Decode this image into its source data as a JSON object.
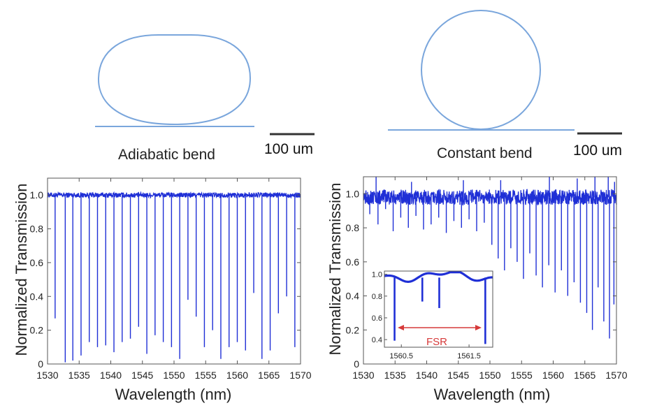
{
  "colors": {
    "ring": "#7aa6dc",
    "trace": "#1f2fd6",
    "axis": "#555555",
    "fsr": "#d63a3a",
    "scalebar": "#333333"
  },
  "diagrams": {
    "left_caption": "Adiabatic bend",
    "right_caption": "Constant bend",
    "left_scalebar": "100 um",
    "right_scalebar": "100 um"
  },
  "chart_data": [
    {
      "type": "line",
      "title": "",
      "xlabel": "Wavelength (nm)",
      "ylabel": "Normalized Transmission",
      "xlim": [
        1530,
        1570
      ],
      "ylim": [
        0,
        1.1
      ],
      "xticks": [
        "1530",
        "1535",
        "1540",
        "1545",
        "1550",
        "1555",
        "1560",
        "1565",
        "1570"
      ],
      "yticks": [
        "0",
        "0.2",
        "0.4",
        "0.6",
        "0.8",
        "1.0"
      ],
      "baseline": 1.0,
      "noise": 0.015,
      "dips": [
        {
          "x": 1531.2,
          "y": 0.27
        },
        {
          "x": 1532.8,
          "y": 0.01
        },
        {
          "x": 1534.0,
          "y": 0.02
        },
        {
          "x": 1535.3,
          "y": 0.05
        },
        {
          "x": 1536.6,
          "y": 0.13
        },
        {
          "x": 1537.9,
          "y": 0.1
        },
        {
          "x": 1539.2,
          "y": 0.11
        },
        {
          "x": 1540.5,
          "y": 0.07
        },
        {
          "x": 1541.8,
          "y": 0.13
        },
        {
          "x": 1543.1,
          "y": 0.15
        },
        {
          "x": 1544.4,
          "y": 0.22
        },
        {
          "x": 1545.7,
          "y": 0.06
        },
        {
          "x": 1547.0,
          "y": 0.17
        },
        {
          "x": 1548.3,
          "y": 0.13
        },
        {
          "x": 1549.6,
          "y": 0.1
        },
        {
          "x": 1550.9,
          "y": 0.03
        },
        {
          "x": 1552.2,
          "y": 0.38
        },
        {
          "x": 1553.5,
          "y": 0.28
        },
        {
          "x": 1554.8,
          "y": 0.1
        },
        {
          "x": 1556.1,
          "y": 0.2
        },
        {
          "x": 1557.4,
          "y": 0.03
        },
        {
          "x": 1558.7,
          "y": 0.1
        },
        {
          "x": 1560.0,
          "y": 0.13
        },
        {
          "x": 1561.3,
          "y": 0.08
        },
        {
          "x": 1562.6,
          "y": 0.42
        },
        {
          "x": 1563.9,
          "y": 0.03
        },
        {
          "x": 1565.2,
          "y": 0.08
        },
        {
          "x": 1566.5,
          "y": 0.3
        },
        {
          "x": 1567.8,
          "y": 0.4
        },
        {
          "x": 1569.1,
          "y": 0.1
        }
      ]
    },
    {
      "type": "line",
      "title": "",
      "xlabel": "Wavelength (nm)",
      "ylabel": "Normalized Transmission",
      "xlim": [
        1530,
        1570
      ],
      "ylim": [
        0,
        1.1
      ],
      "xticks": [
        "1530",
        "1535",
        "1540",
        "1545",
        "1550",
        "1555",
        "1560",
        "1565",
        "1570"
      ],
      "yticks": [
        "0",
        "0.2",
        "0.4",
        "0.6",
        "0.8",
        "1.0"
      ],
      "baseline": 0.98,
      "noise": 0.045,
      "dips": [
        {
          "x": 1531.0,
          "y": 0.88
        },
        {
          "x": 1532.3,
          "y": 0.82
        },
        {
          "x": 1533.5,
          "y": 0.91
        },
        {
          "x": 1534.7,
          "y": 0.78
        },
        {
          "x": 1535.9,
          "y": 0.86
        },
        {
          "x": 1537.1,
          "y": 0.8
        },
        {
          "x": 1538.3,
          "y": 0.87
        },
        {
          "x": 1539.5,
          "y": 0.79
        },
        {
          "x": 1540.7,
          "y": 0.82
        },
        {
          "x": 1541.9,
          "y": 0.86
        },
        {
          "x": 1543.1,
          "y": 0.77
        },
        {
          "x": 1544.3,
          "y": 0.84
        },
        {
          "x": 1545.5,
          "y": 0.8
        },
        {
          "x": 1546.7,
          "y": 0.85
        },
        {
          "x": 1547.9,
          "y": 0.78
        },
        {
          "x": 1549.1,
          "y": 0.83
        },
        {
          "x": 1550.3,
          "y": 0.7
        },
        {
          "x": 1551.3,
          "y": 0.62
        },
        {
          "x": 1552.3,
          "y": 0.55
        },
        {
          "x": 1553.3,
          "y": 0.68
        },
        {
          "x": 1554.3,
          "y": 0.6
        },
        {
          "x": 1555.3,
          "y": 0.5
        },
        {
          "x": 1556.3,
          "y": 0.65
        },
        {
          "x": 1557.3,
          "y": 0.52
        },
        {
          "x": 1558.3,
          "y": 0.45
        },
        {
          "x": 1559.3,
          "y": 0.58
        },
        {
          "x": 1560.3,
          "y": 0.42
        },
        {
          "x": 1561.3,
          "y": 0.55
        },
        {
          "x": 1562.3,
          "y": 0.4
        },
        {
          "x": 1563.3,
          "y": 0.48
        },
        {
          "x": 1564.3,
          "y": 0.36
        },
        {
          "x": 1565.3,
          "y": 0.3
        },
        {
          "x": 1566.2,
          "y": 0.2
        },
        {
          "x": 1567.1,
          "y": 0.45
        },
        {
          "x": 1568.0,
          "y": 0.25
        },
        {
          "x": 1568.9,
          "y": 0.15
        },
        {
          "x": 1569.6,
          "y": 0.35
        }
      ],
      "peaks": [
        {
          "x": 1532.0,
          "y": 1.1
        },
        {
          "x": 1537.6,
          "y": 1.07
        },
        {
          "x": 1545.8,
          "y": 1.08
        },
        {
          "x": 1551.7,
          "y": 1.08
        },
        {
          "x": 1559.4,
          "y": 1.1
        },
        {
          "x": 1563.8,
          "y": 1.09
        },
        {
          "x": 1566.6,
          "y": 1.1
        },
        {
          "x": 1568.7,
          "y": 1.1
        },
        {
          "x": 1569.7,
          "y": 1.07
        }
      ],
      "inset": {
        "xlim": [
          1560.25,
          1561.85
        ],
        "ylim": [
          0.33,
          1.03
        ],
        "xticks": [
          "1560.5",
          "1561.5"
        ],
        "yticks": [
          "0.4",
          "0.6",
          "0.8",
          "1.0"
        ],
        "annotation": "FSR",
        "dips": [
          {
            "x": 1560.4,
            "y": 0.39
          },
          {
            "x": 1560.81,
            "y": 0.75
          },
          {
            "x": 1561.06,
            "y": 0.69
          },
          {
            "x": 1561.74,
            "y": 0.36
          }
        ]
      }
    }
  ]
}
